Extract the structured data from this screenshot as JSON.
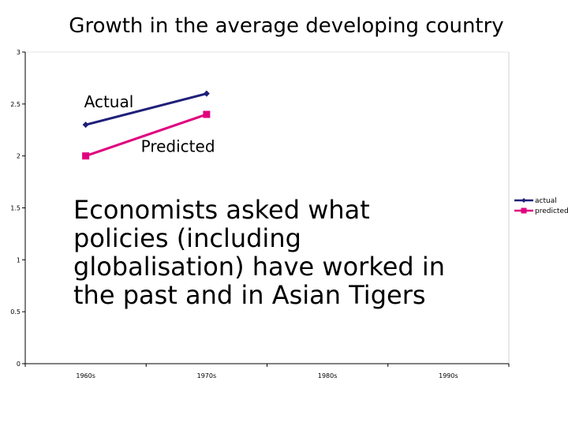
{
  "title": "Growth in the average developing country",
  "body_text": [
    "Economists asked what",
    "policies (including",
    "globalisation) have worked in",
    "the past and in Asian Tigers"
  ],
  "chart_data": {
    "type": "line",
    "categories": [
      "1960s",
      "1970s",
      "1980s",
      "1990s"
    ],
    "ylim": [
      0,
      3
    ],
    "yticks": [
      "0",
      "0.5",
      "1",
      "1.5",
      "2",
      "2.5",
      "3"
    ],
    "series": [
      {
        "name": "actual",
        "values": [
          2.3,
          2.6,
          null,
          null
        ],
        "color": "#1f1f7a",
        "marker": "diamond"
      },
      {
        "name": "predicted",
        "values": [
          2.0,
          2.4,
          null,
          null
        ],
        "color": "#e0007f",
        "marker": "square"
      }
    ],
    "legend_position": "right",
    "annotations": [
      {
        "text": "Actual",
        "series": "actual"
      },
      {
        "text": "Predicted",
        "series": "predicted"
      }
    ],
    "grid": false
  }
}
